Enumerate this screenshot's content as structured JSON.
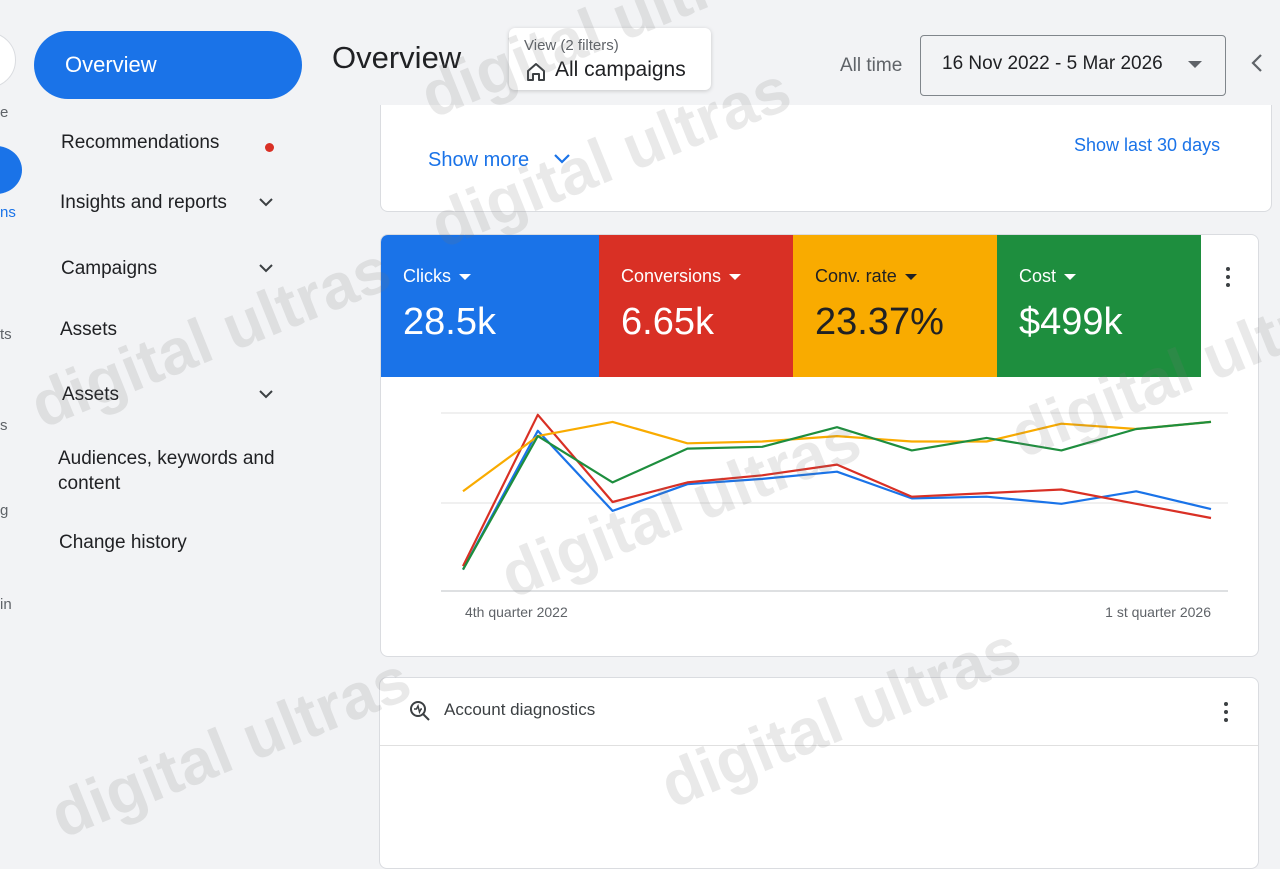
{
  "header": {
    "title": "Overview",
    "view_label": "View (2 filters)",
    "view_value": "All campaigns",
    "date_preset": "All time",
    "date_range": "16 Nov 2022 - 5 Mar 2026"
  },
  "rail": {
    "fragments": [
      "e",
      "ns",
      "ts",
      "s",
      "g",
      "in"
    ]
  },
  "nav": {
    "active": "Overview",
    "items": [
      {
        "label": "Recommendations"
      },
      {
        "label": "Insights and reports"
      },
      {
        "label": "Campaigns"
      },
      {
        "label": "Assets"
      },
      {
        "label": "Assets"
      },
      {
        "label": "Audiences, keywords and content"
      },
      {
        "label": "Change history"
      }
    ]
  },
  "top_card": {
    "show_more": "Show more",
    "show_last": "Show last 30 days"
  },
  "metrics": [
    {
      "label": "Clicks",
      "value": "28.5k",
      "color": "#1a73e8"
    },
    {
      "label": "Conversions",
      "value": "6.65k",
      "color": "#d93025"
    },
    {
      "label": "Conv. rate",
      "value": "23.37%",
      "color": "#f9ab00"
    },
    {
      "label": "Cost",
      "value": "$499k",
      "color": "#1e8e3e"
    }
  ],
  "chart_data": {
    "type": "line",
    "x_tick_labels": [
      "4th quarter 2022",
      "1 st quarter 2026"
    ],
    "grid": true,
    "series": [
      {
        "name": "Clicks",
        "color": "#1a73e8",
        "values": [
          0.12,
          0.9,
          0.45,
          0.6,
          0.63,
          0.67,
          0.52,
          0.53,
          0.49,
          0.56,
          0.46
        ]
      },
      {
        "name": "Conversions",
        "color": "#d93025",
        "values": [
          0.14,
          0.99,
          0.5,
          0.61,
          0.65,
          0.71,
          0.53,
          0.55,
          0.57,
          0.49,
          0.41
        ]
      },
      {
        "name": "Conv. rate",
        "color": "#f9ab00",
        "values": [
          0.56,
          0.87,
          0.95,
          0.83,
          0.84,
          0.87,
          0.84,
          0.84,
          0.94,
          0.91,
          0.95
        ]
      },
      {
        "name": "Cost",
        "color": "#1e8e3e",
        "values": [
          0.12,
          0.87,
          0.61,
          0.8,
          0.81,
          0.92,
          0.79,
          0.86,
          0.79,
          0.91,
          0.95
        ]
      }
    ]
  },
  "diagnostics": {
    "title": "Account diagnostics"
  },
  "watermark": "digital ultras"
}
